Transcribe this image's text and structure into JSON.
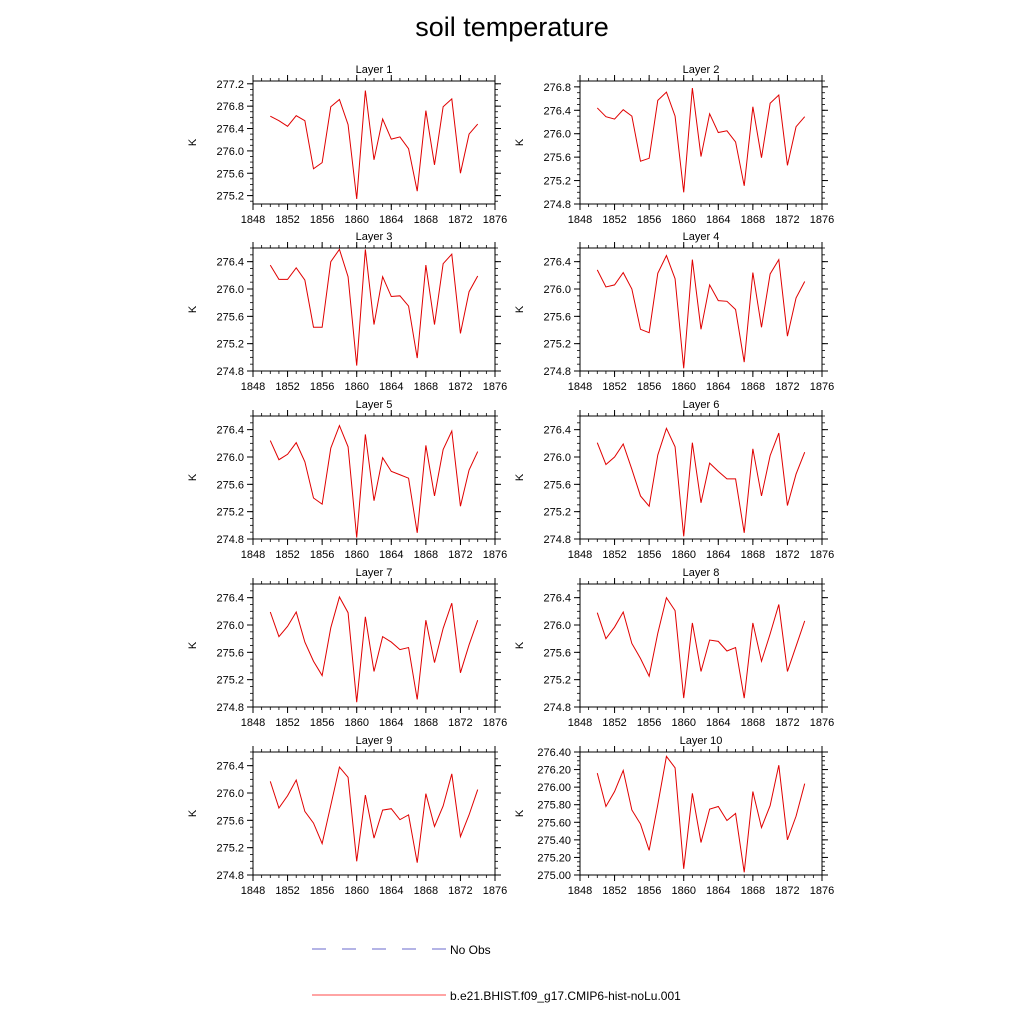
{
  "title": "soil temperature",
  "legend": {
    "entries": [
      {
        "label": "No Obs",
        "color": "#6a6acd",
        "dash": true
      },
      {
        "label": "b.e21.BHIST.f09_g17.CMIP6-hist-noLu.001",
        "color": "#ff4a4a",
        "dash": false
      }
    ]
  },
  "chart_data": [
    {
      "type": "line",
      "title": "Layer 1",
      "ylabel": "K",
      "xlim": [
        1848,
        1876
      ],
      "ylim": [
        275.05,
        277.25
      ],
      "yticks": [
        275.2,
        275.6,
        276.0,
        276.4,
        276.8,
        277.2
      ],
      "ytick_labels": [
        "275.2",
        "275.6",
        "276.0",
        "276.4",
        "276.8",
        "277.2"
      ],
      "xticks": [
        1848,
        1852,
        1856,
        1860,
        1864,
        1868,
        1872,
        1876
      ],
      "xtick_labels": [
        "1848",
        "1852",
        "1856",
        "1860",
        "1864",
        "1868",
        "1872",
        "1876"
      ],
      "x": [
        1850,
        1851,
        1852,
        1853,
        1854,
        1855,
        1856,
        1857,
        1858,
        1859,
        1860,
        1861,
        1862,
        1863,
        1864,
        1865,
        1866,
        1867,
        1868,
        1869,
        1870,
        1871,
        1872,
        1873,
        1874
      ],
      "series": [
        {
          "color": "#e00000",
          "values": [
            276.62,
            276.54,
            276.44,
            276.63,
            276.54,
            275.68,
            275.79,
            276.79,
            276.92,
            276.47,
            275.14,
            277.08,
            275.84,
            276.57,
            276.21,
            276.25,
            276.04,
            275.28,
            276.72,
            275.75,
            276.79,
            276.93,
            275.6,
            276.3,
            276.48
          ]
        }
      ]
    },
    {
      "type": "line",
      "title": "Layer 2",
      "ylabel": "K",
      "xlim": [
        1848,
        1876
      ],
      "ylim": [
        274.8,
        276.9
      ],
      "yticks": [
        274.8,
        275.2,
        275.6,
        276.0,
        276.4,
        276.8
      ],
      "ytick_labels": [
        "274.8",
        "275.2",
        "275.6",
        "276.0",
        "276.4",
        "276.8"
      ],
      "xticks": [
        1848,
        1852,
        1856,
        1860,
        1864,
        1868,
        1872,
        1876
      ],
      "xtick_labels": [
        "1848",
        "1852",
        "1856",
        "1860",
        "1864",
        "1868",
        "1872",
        "1876"
      ],
      "x": [
        1850,
        1851,
        1852,
        1853,
        1854,
        1855,
        1856,
        1857,
        1858,
        1859,
        1860,
        1861,
        1862,
        1863,
        1864,
        1865,
        1866,
        1867,
        1868,
        1869,
        1870,
        1871,
        1872,
        1873,
        1874
      ],
      "series": [
        {
          "color": "#e00000",
          "values": [
            276.44,
            276.29,
            276.25,
            276.41,
            276.3,
            275.53,
            275.58,
            276.57,
            276.71,
            276.3,
            275.0,
            276.78,
            275.61,
            276.34,
            276.02,
            276.05,
            275.86,
            275.11,
            276.46,
            275.59,
            276.52,
            276.66,
            275.46,
            276.12,
            276.29
          ]
        }
      ]
    },
    {
      "type": "line",
      "title": "Layer 3",
      "ylabel": "K",
      "xlim": [
        1848,
        1876
      ],
      "ylim": [
        274.8,
        276.6
      ],
      "yticks": [
        274.8,
        275.2,
        275.6,
        276.0,
        276.4
      ],
      "ytick_labels": [
        "274.8",
        "275.2",
        "275.6",
        "276.0",
        "276.4"
      ],
      "xticks": [
        1848,
        1852,
        1856,
        1860,
        1864,
        1868,
        1872,
        1876
      ],
      "xtick_labels": [
        "1848",
        "1852",
        "1856",
        "1860",
        "1864",
        "1868",
        "1872",
        "1876"
      ],
      "x": [
        1850,
        1851,
        1852,
        1853,
        1854,
        1855,
        1856,
        1857,
        1858,
        1859,
        1860,
        1861,
        1862,
        1863,
        1864,
        1865,
        1866,
        1867,
        1868,
        1869,
        1870,
        1871,
        1872,
        1873,
        1874
      ],
      "series": [
        {
          "color": "#e00000",
          "values": [
            276.35,
            276.14,
            276.14,
            276.31,
            276.13,
            275.44,
            275.44,
            276.4,
            276.58,
            276.18,
            274.88,
            276.58,
            275.48,
            276.18,
            275.89,
            275.9,
            275.75,
            274.99,
            276.35,
            275.48,
            276.37,
            276.51,
            275.35,
            275.96,
            276.19
          ]
        }
      ]
    },
    {
      "type": "line",
      "title": "Layer 4",
      "ylabel": "K",
      "xlim": [
        1848,
        1876
      ],
      "ylim": [
        274.8,
        276.6
      ],
      "yticks": [
        274.8,
        275.2,
        275.6,
        276.0,
        276.4
      ],
      "ytick_labels": [
        "274.8",
        "275.2",
        "275.6",
        "276.0",
        "276.4"
      ],
      "xticks": [
        1848,
        1852,
        1856,
        1860,
        1864,
        1868,
        1872,
        1876
      ],
      "xtick_labels": [
        "1848",
        "1852",
        "1856",
        "1860",
        "1864",
        "1868",
        "1872",
        "1876"
      ],
      "x": [
        1850,
        1851,
        1852,
        1853,
        1854,
        1855,
        1856,
        1857,
        1858,
        1859,
        1860,
        1861,
        1862,
        1863,
        1864,
        1865,
        1866,
        1867,
        1868,
        1869,
        1870,
        1871,
        1872,
        1873,
        1874
      ],
      "series": [
        {
          "color": "#e00000",
          "values": [
            276.28,
            276.03,
            276.06,
            276.24,
            276.0,
            275.41,
            275.36,
            276.23,
            276.49,
            276.15,
            274.84,
            276.43,
            275.41,
            276.06,
            275.83,
            275.82,
            275.7,
            274.93,
            276.24,
            275.44,
            276.22,
            276.43,
            275.31,
            275.87,
            276.11
          ]
        }
      ]
    },
    {
      "type": "line",
      "title": "Layer 5",
      "ylabel": "K",
      "xlim": [
        1848,
        1876
      ],
      "ylim": [
        274.8,
        276.6
      ],
      "yticks": [
        274.8,
        275.2,
        275.6,
        276.0,
        276.4
      ],
      "ytick_labels": [
        "274.8",
        "275.2",
        "275.6",
        "276.0",
        "276.4"
      ],
      "xticks": [
        1848,
        1852,
        1856,
        1860,
        1864,
        1868,
        1872,
        1876
      ],
      "xtick_labels": [
        "1848",
        "1852",
        "1856",
        "1860",
        "1864",
        "1868",
        "1872",
        "1876"
      ],
      "x": [
        1850,
        1851,
        1852,
        1853,
        1854,
        1855,
        1856,
        1857,
        1858,
        1859,
        1860,
        1861,
        1862,
        1863,
        1864,
        1865,
        1866,
        1867,
        1868,
        1869,
        1870,
        1871,
        1872,
        1873,
        1874
      ],
      "series": [
        {
          "color": "#e00000",
          "values": [
            276.24,
            275.96,
            276.04,
            276.21,
            275.93,
            275.4,
            275.31,
            276.13,
            276.46,
            276.15,
            274.82,
            276.33,
            275.36,
            275.99,
            275.79,
            275.74,
            275.69,
            274.89,
            276.17,
            275.43,
            276.11,
            276.38,
            275.28,
            275.81,
            276.08
          ]
        }
      ]
    },
    {
      "type": "line",
      "title": "Layer 6",
      "ylabel": "K",
      "xlim": [
        1848,
        1876
      ],
      "ylim": [
        274.8,
        276.6
      ],
      "yticks": [
        274.8,
        275.2,
        275.6,
        276.0,
        276.4
      ],
      "ytick_labels": [
        "274.8",
        "275.2",
        "275.6",
        "276.0",
        "276.4"
      ],
      "xticks": [
        1848,
        1852,
        1856,
        1860,
        1864,
        1868,
        1872,
        1876
      ],
      "xtick_labels": [
        "1848",
        "1852",
        "1856",
        "1860",
        "1864",
        "1868",
        "1872",
        "1876"
      ],
      "x": [
        1850,
        1851,
        1852,
        1853,
        1854,
        1855,
        1856,
        1857,
        1858,
        1859,
        1860,
        1861,
        1862,
        1863,
        1864,
        1865,
        1866,
        1867,
        1868,
        1869,
        1870,
        1871,
        1872,
        1873,
        1874
      ],
      "series": [
        {
          "color": "#e00000",
          "values": [
            276.21,
            275.89,
            276.0,
            276.19,
            275.82,
            275.43,
            275.28,
            276.03,
            276.42,
            276.15,
            274.84,
            276.21,
            275.33,
            275.91,
            275.79,
            275.68,
            275.68,
            274.89,
            276.12,
            275.43,
            276.02,
            276.35,
            275.29,
            275.75,
            276.07
          ]
        }
      ]
    },
    {
      "type": "line",
      "title": "Layer 7",
      "ylabel": "K",
      "xlim": [
        1848,
        1876
      ],
      "ylim": [
        274.8,
        276.6
      ],
      "yticks": [
        274.8,
        275.2,
        275.6,
        276.0,
        276.4
      ],
      "ytick_labels": [
        "274.8",
        "275.2",
        "275.6",
        "276.0",
        "276.4"
      ],
      "xticks": [
        1848,
        1852,
        1856,
        1860,
        1864,
        1868,
        1872,
        1876
      ],
      "xtick_labels": [
        "1848",
        "1852",
        "1856",
        "1860",
        "1864",
        "1868",
        "1872",
        "1876"
      ],
      "x": [
        1850,
        1851,
        1852,
        1853,
        1854,
        1855,
        1856,
        1857,
        1858,
        1859,
        1860,
        1861,
        1862,
        1863,
        1864,
        1865,
        1866,
        1867,
        1868,
        1869,
        1870,
        1871,
        1872,
        1873,
        1874
      ],
      "series": [
        {
          "color": "#e00000",
          "values": [
            276.19,
            275.83,
            275.98,
            276.19,
            275.75,
            275.47,
            275.26,
            275.96,
            276.41,
            276.18,
            274.87,
            276.12,
            275.32,
            275.83,
            275.75,
            275.64,
            275.67,
            274.91,
            276.07,
            275.45,
            275.95,
            276.32,
            275.3,
            275.71,
            276.07
          ]
        }
      ]
    },
    {
      "type": "line",
      "title": "Layer 8",
      "ylabel": "K",
      "xlim": [
        1848,
        1876
      ],
      "ylim": [
        274.8,
        276.6
      ],
      "yticks": [
        274.8,
        275.2,
        275.6,
        276.0,
        276.4
      ],
      "ytick_labels": [
        "274.8",
        "275.2",
        "275.6",
        "276.0",
        "276.4"
      ],
      "xticks": [
        1848,
        1852,
        1856,
        1860,
        1864,
        1868,
        1872,
        1876
      ],
      "xtick_labels": [
        "1848",
        "1852",
        "1856",
        "1860",
        "1864",
        "1868",
        "1872",
        "1876"
      ],
      "x": [
        1850,
        1851,
        1852,
        1853,
        1854,
        1855,
        1856,
        1857,
        1858,
        1859,
        1860,
        1861,
        1862,
        1863,
        1864,
        1865,
        1866,
        1867,
        1868,
        1869,
        1870,
        1871,
        1872,
        1873,
        1874
      ],
      "series": [
        {
          "color": "#e00000",
          "values": [
            276.18,
            275.8,
            275.97,
            276.19,
            275.73,
            275.51,
            275.25,
            275.88,
            276.4,
            276.21,
            274.93,
            276.03,
            275.32,
            275.78,
            275.76,
            275.62,
            275.67,
            274.93,
            276.03,
            275.47,
            275.87,
            276.3,
            275.32,
            275.69,
            276.06
          ]
        }
      ]
    },
    {
      "type": "line",
      "title": "Layer 9",
      "ylabel": "K",
      "xlim": [
        1848,
        1876
      ],
      "ylim": [
        274.8,
        276.6
      ],
      "yticks": [
        274.8,
        275.2,
        275.6,
        276.0,
        276.4
      ],
      "ytick_labels": [
        "274.8",
        "275.2",
        "275.6",
        "276.0",
        "276.4"
      ],
      "xticks": [
        1848,
        1852,
        1856,
        1860,
        1864,
        1868,
        1872,
        1876
      ],
      "xtick_labels": [
        "1848",
        "1852",
        "1856",
        "1860",
        "1864",
        "1868",
        "1872",
        "1876"
      ],
      "x": [
        1850,
        1851,
        1852,
        1853,
        1854,
        1855,
        1856,
        1857,
        1858,
        1859,
        1860,
        1861,
        1862,
        1863,
        1864,
        1865,
        1866,
        1867,
        1868,
        1869,
        1870,
        1871,
        1872,
        1873,
        1874
      ],
      "series": [
        {
          "color": "#e00000",
          "values": [
            276.17,
            275.78,
            275.96,
            276.19,
            275.73,
            275.56,
            275.26,
            275.82,
            276.38,
            276.23,
            275.0,
            275.97,
            275.34,
            275.75,
            275.77,
            275.61,
            275.68,
            274.98,
            275.99,
            275.51,
            275.81,
            276.28,
            275.36,
            275.68,
            276.05
          ]
        }
      ]
    },
    {
      "type": "line",
      "title": "Layer 10",
      "ylabel": "K",
      "xlim": [
        1848,
        1876
      ],
      "ylim": [
        275.0,
        276.4
      ],
      "yticks": [
        275.0,
        275.2,
        275.4,
        275.6,
        275.8,
        276.0,
        276.2,
        276.4
      ],
      "ytick_labels": [
        "275.00",
        "275.20",
        "275.40",
        "275.60",
        "275.80",
        "276.00",
        "276.20",
        "276.40"
      ],
      "xticks": [
        1848,
        1852,
        1856,
        1860,
        1864,
        1868,
        1872,
        1876
      ],
      "xtick_labels": [
        "1848",
        "1852",
        "1856",
        "1860",
        "1864",
        "1868",
        "1872",
        "1876"
      ],
      "x": [
        1850,
        1851,
        1852,
        1853,
        1854,
        1855,
        1856,
        1857,
        1858,
        1859,
        1860,
        1861,
        1862,
        1863,
        1864,
        1865,
        1866,
        1867,
        1868,
        1869,
        1870,
        1871,
        1872,
        1873,
        1874
      ],
      "series": [
        {
          "color": "#e00000",
          "values": [
            276.16,
            275.78,
            275.95,
            276.19,
            275.74,
            275.58,
            275.28,
            275.8,
            276.35,
            276.22,
            275.07,
            275.93,
            275.37,
            275.75,
            275.78,
            275.62,
            275.7,
            275.03,
            275.95,
            275.54,
            275.79,
            276.25,
            275.4,
            275.67,
            276.04
          ]
        }
      ]
    }
  ]
}
